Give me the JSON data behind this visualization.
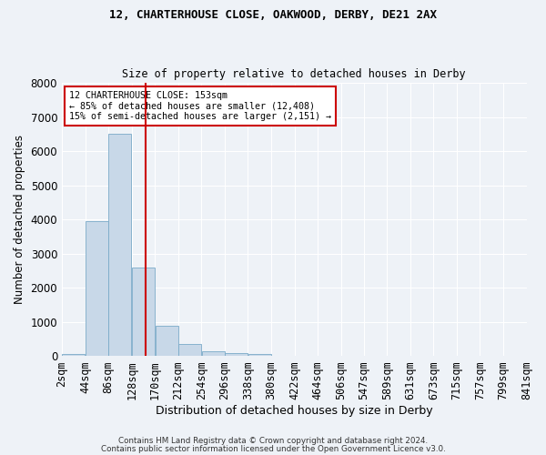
{
  "title1": "12, CHARTERHOUSE CLOSE, OAKWOOD, DERBY, DE21 2AX",
  "title2": "Size of property relative to detached houses in Derby",
  "xlabel": "Distribution of detached houses by size in Derby",
  "ylabel": "Number of detached properties",
  "footnote1": "Contains HM Land Registry data © Crown copyright and database right 2024.",
  "footnote2": "Contains public sector information licensed under the Open Government Licence v3.0.",
  "annotation_line1": "12 CHARTERHOUSE CLOSE: 153sqm",
  "annotation_line2": "← 85% of detached houses are smaller (12,408)",
  "annotation_line3": "15% of semi-detached houses are larger (2,151) →",
  "bar_color": "#c8d8e8",
  "bar_edge_color": "#7aaac8",
  "property_line_color": "#cc0000",
  "background_color": "#eef2f7",
  "bin_edges": [
    2,
    44,
    86,
    128,
    170,
    212,
    254,
    296,
    338,
    380,
    422,
    464,
    506,
    547,
    589,
    631,
    673,
    715,
    757,
    799,
    841
  ],
  "bin_labels": [
    "2sqm",
    "44sqm",
    "86sqm",
    "128sqm",
    "170sqm",
    "212sqm",
    "254sqm",
    "296sqm",
    "338sqm",
    "380sqm",
    "422sqm",
    "464sqm",
    "506sqm",
    "547sqm",
    "589sqm",
    "631sqm",
    "673sqm",
    "715sqm",
    "757sqm",
    "799sqm",
    "841sqm"
  ],
  "bar_heights": [
    50,
    3950,
    6500,
    2600,
    900,
    350,
    150,
    80,
    50,
    0,
    0,
    0,
    0,
    0,
    0,
    0,
    0,
    0,
    0,
    0
  ],
  "property_size": 153,
  "ylim": [
    0,
    8000
  ],
  "yticks": [
    0,
    1000,
    2000,
    3000,
    4000,
    5000,
    6000,
    7000,
    8000
  ]
}
